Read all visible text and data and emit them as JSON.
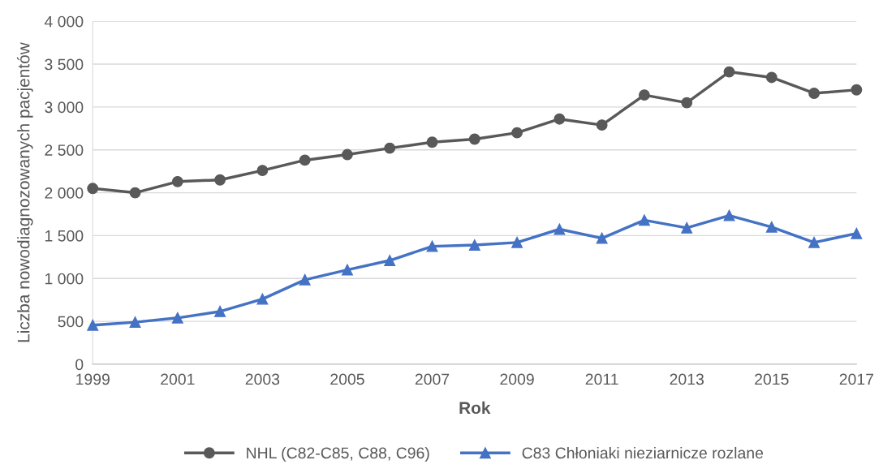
{
  "chart_data": {
    "type": "line",
    "xlabel": "Rok",
    "ylabel": "Liczba nowodiagnozowanych pacjentów",
    "x": [
      1999,
      2000,
      2001,
      2002,
      2003,
      2004,
      2005,
      2006,
      2007,
      2008,
      2009,
      2010,
      2011,
      2012,
      2013,
      2014,
      2015,
      2016,
      2017
    ],
    "series": [
      {
        "name": "NHL (C82-C85, C88, C96)",
        "color": "#595959",
        "marker": "circle",
        "values": [
          2050,
          2000,
          2130,
          2150,
          2260,
          2380,
          2445,
          2520,
          2590,
          2625,
          2700,
          2860,
          2790,
          3140,
          3050,
          3410,
          3345,
          3160,
          3200
        ]
      },
      {
        "name": "C83 Chłoniaki nieziarnicze rozlane",
        "color": "#4472c4",
        "marker": "triangle",
        "values": [
          455,
          490,
          540,
          615,
          760,
          985,
          1100,
          1210,
          1375,
          1390,
          1420,
          1575,
          1470,
          1680,
          1590,
          1735,
          1600,
          1420,
          1525
        ]
      }
    ],
    "xlim": [
      1999,
      2017
    ],
    "xticks": [
      1999,
      2001,
      2003,
      2005,
      2007,
      2009,
      2011,
      2013,
      2015,
      2017
    ],
    "ylim": [
      0,
      4000
    ],
    "yticks": [
      0,
      500,
      {
        "value": 1000,
        "label": "1 000"
      },
      {
        "value": 1500,
        "label": "1 500"
      },
      {
        "value": 2000,
        "label": "2 000"
      },
      {
        "value": 2500,
        "label": "2 500"
      },
      {
        "value": 3000,
        "label": "3 000"
      },
      {
        "value": 3500,
        "label": "3 500"
      },
      {
        "value": 4000,
        "label": "4 000"
      }
    ],
    "grid": "y",
    "legend": "bottom",
    "line_style": "solid"
  }
}
